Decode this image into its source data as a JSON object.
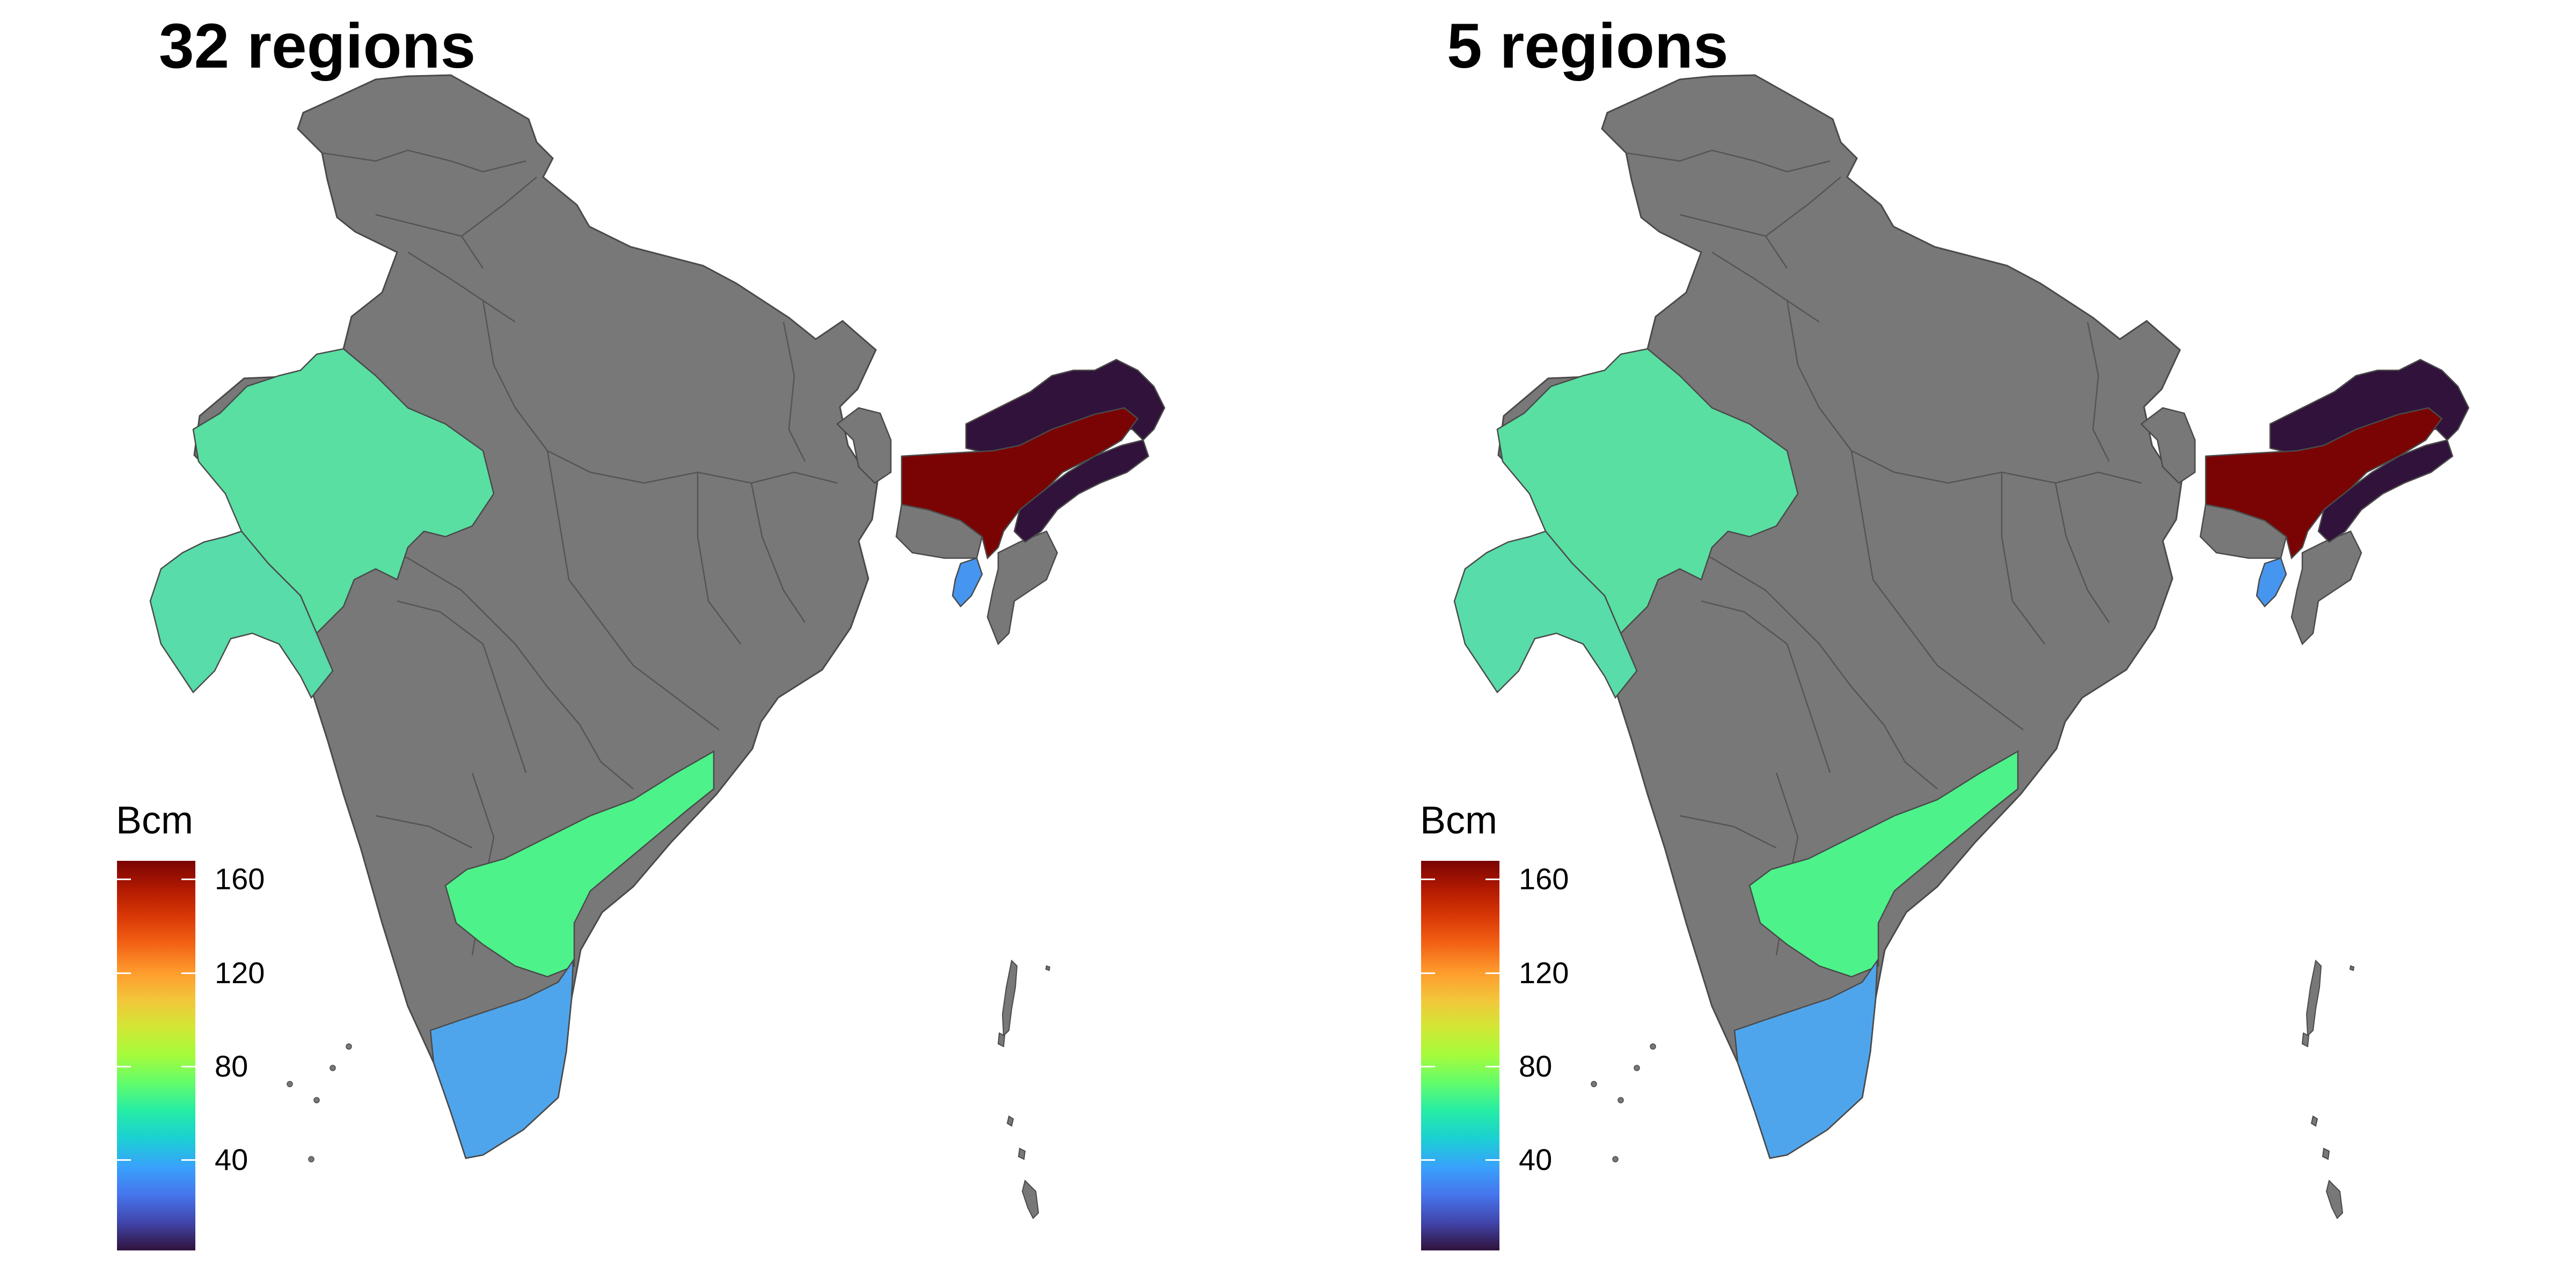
{
  "panels": [
    {
      "title": "32 regions",
      "legend": {
        "title": "Bcm",
        "ticks": [
          "160",
          "120",
          "80",
          "40"
        ]
      }
    },
    {
      "title": "5 regions",
      "legend": {
        "title": "Bcm",
        "ticks": [
          "160",
          "120",
          "80",
          "40"
        ]
      }
    }
  ],
  "map_data": {
    "region_colors": {
      "rajasthan": "#59DFA2",
      "gujarat": "#58DCA9",
      "andhra_pradesh": "#4DF28A",
      "tamil_nadu": "#4FA5EC",
      "assam": "#7A0403",
      "arunachal_pradesh": "#30123B",
      "nagaland": "#30123B",
      "tripura": "#4696F0",
      "other_states": "#787878"
    },
    "colorbar": {
      "min": 0,
      "max": 170,
      "stops": [
        "#30123B",
        "#4145AB",
        "#4675ED",
        "#39A2FC",
        "#1BCFD4",
        "#24ECA6",
        "#61FC6C",
        "#A4FC3B",
        "#D1E834",
        "#F3C63A",
        "#FE9B2D",
        "#F36315",
        "#D93806",
        "#B11901",
        "#7A0403"
      ]
    }
  }
}
